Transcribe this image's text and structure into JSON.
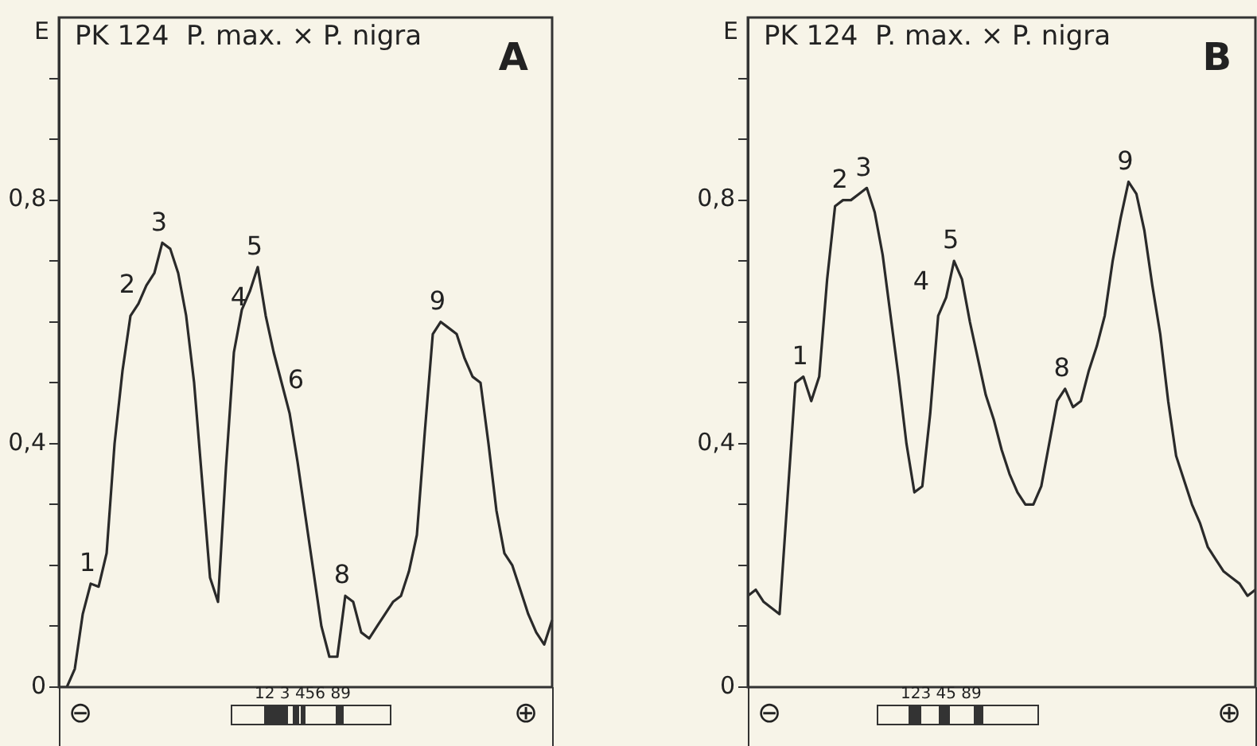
{
  "chart_data": [
    {
      "type": "line",
      "title": "PK 124  P. max. × P. nigra",
      "ylabel": "E",
      "categories": [
        null,
        null,
        null,
        null,
        null,
        null,
        null,
        null,
        null,
        null,
        null,
        null,
        null,
        null,
        null,
        null,
        null,
        null,
        null,
        null,
        null,
        null,
        null,
        null,
        null,
        null,
        null,
        null,
        null,
        null,
        null,
        null,
        null,
        null,
        null,
        null,
        null,
        null,
        null,
        null,
        null,
        null,
        null,
        null,
        null,
        null,
        null,
        null,
        null,
        null,
        null,
        null,
        null,
        null,
        null,
        null,
        null,
        null,
        null,
        null,
        null,
        null,
        null
      ],
      "series": [
        {
          "color": "#2a2a2a",
          "values": [
            0,
            0,
            0.03,
            0.12,
            0.17,
            0.165,
            0.22,
            0.4,
            0.52,
            0.61,
            0.63,
            0.66,
            0.68,
            0.73,
            0.72,
            0.68,
            0.61,
            0.5,
            0.34,
            0.18,
            0.14,
            0.36,
            0.55,
            0.62,
            0.65,
            0.69,
            0.61,
            0.55,
            0.5,
            0.45,
            0.37,
            0.28,
            0.19,
            0.1,
            0.05,
            0.05,
            0.15,
            0.14,
            0.09,
            0.08,
            0.1,
            0.12,
            0.14,
            0.15,
            0.19,
            0.25,
            0.42,
            0.58,
            0.6,
            0.59,
            0.58,
            0.54,
            0.51,
            0.5,
            0.4,
            0.29,
            0.22,
            0.2,
            0.16,
            0.12,
            0.09,
            0.07,
            0.11
          ]
        }
      ],
      "ylim": [
        0,
        1.1
      ],
      "yticks": [
        0,
        {
          "value": 0.1,
          "label": null
        },
        {
          "value": 0.2,
          "label": null
        },
        {
          "value": 0.3,
          "label": null
        },
        {
          "value": 0.4,
          "label": "0,4"
        },
        {
          "value": 0.5,
          "label": null
        },
        {
          "value": 0.6,
          "label": null
        },
        {
          "value": 0.7,
          "label": null
        },
        {
          "value": 0.8,
          "label": "0,8"
        },
        {
          "value": 0.9,
          "label": null
        },
        {
          "value": 1.0,
          "label": null
        }
      ],
      "grid": false,
      "legend": false,
      "tick_labels": "y",
      "annotations": [
        "A",
        "⊖",
        "12 3 456  89",
        "⊕",
        "2",
        "4",
        "6",
        {
          "text": "1",
          "y": 0.17
        },
        {
          "text": "3",
          "y": 0.73
        },
        {
          "text": "5",
          "y": 0.69
        },
        {
          "text": "8",
          "y": 0.15
        },
        {
          "text": "9",
          "y": 0.6
        }
      ]
    },
    {
      "type": "line",
      "title": "PK 124  P. max. × P. nigra",
      "ylabel": "E",
      "categories": [
        null,
        null,
        null,
        null,
        null,
        null,
        null,
        null,
        null,
        null,
        null,
        null,
        null,
        null,
        null,
        null,
        null,
        null,
        null,
        null,
        null,
        null,
        null,
        null,
        null,
        null,
        null,
        null,
        null,
        null,
        null,
        null,
        null,
        null,
        null,
        null,
        null,
        null,
        null,
        null,
        null,
        null,
        null,
        null,
        null,
        null,
        null,
        null,
        null,
        null,
        null,
        null,
        null,
        null,
        null,
        null,
        null,
        null,
        null,
        null,
        null,
        null,
        null,
        null,
        null
      ],
      "series": [
        {
          "color": "#2a2a2a",
          "values": [
            0.15,
            0.16,
            0.14,
            0.13,
            0.12,
            0.31,
            0.5,
            0.51,
            0.47,
            0.51,
            0.67,
            0.79,
            0.8,
            0.8,
            0.81,
            0.82,
            0.78,
            0.71,
            0.61,
            0.51,
            0.4,
            0.32,
            0.33,
            0.45,
            0.61,
            0.64,
            0.7,
            0.67,
            0.6,
            0.54,
            0.48,
            0.44,
            0.39,
            0.35,
            0.32,
            0.3,
            0.3,
            0.33,
            0.4,
            0.47,
            0.49,
            0.46,
            0.47,
            0.52,
            0.56,
            0.61,
            0.7,
            0.77,
            0.83,
            0.81,
            0.75,
            0.66,
            0.58,
            0.47,
            0.38,
            0.34,
            0.3,
            0.27,
            0.23,
            0.21,
            0.19,
            0.18,
            0.17,
            0.15,
            0.16
          ]
        }
      ],
      "ylim": [
        0,
        1.1
      ],
      "yticks": [
        0,
        {
          "value": 0.1,
          "label": null
        },
        {
          "value": 0.2,
          "label": null
        },
        {
          "value": 0.3,
          "label": null
        },
        {
          "value": 0.4,
          "label": "0,4"
        },
        {
          "value": 0.5,
          "label": null
        },
        {
          "value": 0.6,
          "label": null
        },
        {
          "value": 0.7,
          "label": null
        },
        {
          "value": 0.8,
          "label": "0,8"
        },
        {
          "value": 0.9,
          "label": null
        },
        {
          "value": 1.0,
          "label": null
        }
      ],
      "grid": false,
      "legend": false,
      "tick_labels": "y",
      "annotations": [
        "B",
        "⊖",
        "123 45 89",
        "⊕",
        "4",
        {
          "text": "1",
          "y": 0.51
        },
        {
          "text": "2",
          "y": 0.8
        },
        {
          "text": "3",
          "y": 0.82
        },
        {
          "text": "5",
          "y": 0.7
        },
        {
          "text": "8",
          "y": 0.49
        },
        {
          "text": "9",
          "y": 0.83
        }
      ]
    }
  ]
}
